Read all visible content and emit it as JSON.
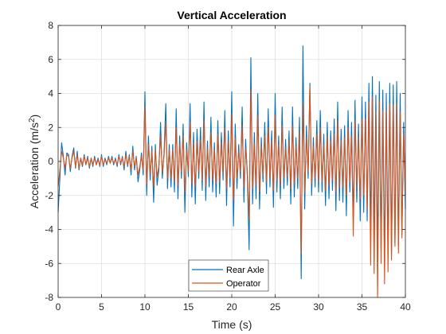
{
  "chart_data": {
    "type": "line",
    "title": "Vertical Acceleration",
    "xlabel": "Time (s)",
    "ylabel_main": "Acceleration (m/s",
    "ylabel_sup": "2",
    "ylabel_tail": ")",
    "xlim": [
      0,
      40
    ],
    "ylim": [
      -8,
      8
    ],
    "xticks": [
      0,
      5,
      10,
      15,
      20,
      25,
      30,
      35,
      40
    ],
    "yticks": [
      -8,
      -6,
      -4,
      -2,
      0,
      2,
      4,
      6,
      8
    ],
    "grid": true,
    "legend_position": "bottom-center",
    "series": [
      {
        "name": "Rear Axle",
        "color": "#0072BD",
        "x": [
          0,
          0.2,
          0.4,
          0.6,
          0.8,
          1.0,
          1.2,
          1.4,
          1.6,
          1.8,
          2.0,
          2.2,
          2.4,
          2.6,
          2.8,
          3.0,
          3.2,
          3.4,
          3.6,
          3.8,
          4.0,
          4.2,
          4.4,
          4.6,
          4.8,
          5.0,
          5.2,
          5.4,
          5.6,
          5.8,
          6.0,
          6.2,
          6.4,
          6.6,
          6.8,
          7.0,
          7.2,
          7.4,
          7.6,
          7.8,
          8.0,
          8.2,
          8.4,
          8.6,
          8.8,
          9.0,
          9.2,
          9.4,
          9.6,
          9.8,
          10.0,
          10.2,
          10.4,
          10.6,
          10.8,
          11.0,
          11.2,
          11.4,
          11.6,
          11.8,
          12.0,
          12.2,
          12.4,
          12.6,
          12.8,
          13.0,
          13.2,
          13.4,
          13.6,
          13.8,
          14.0,
          14.2,
          14.4,
          14.6,
          14.8,
          15.0,
          15.2,
          15.4,
          15.6,
          15.8,
          16.0,
          16.2,
          16.4,
          16.6,
          16.8,
          17.0,
          17.2,
          17.4,
          17.6,
          17.8,
          18.0,
          18.2,
          18.4,
          18.6,
          18.8,
          19.0,
          19.2,
          19.4,
          19.6,
          19.8,
          20.0,
          20.2,
          20.4,
          20.6,
          20.8,
          21.0,
          21.2,
          21.4,
          21.6,
          21.8,
          22.0,
          22.2,
          22.4,
          22.6,
          22.8,
          23.0,
          23.2,
          23.4,
          23.6,
          23.8,
          24.0,
          24.2,
          24.4,
          24.6,
          24.8,
          25.0,
          25.2,
          25.4,
          25.6,
          25.8,
          26.0,
          26.2,
          26.4,
          26.6,
          26.8,
          27.0,
          27.2,
          27.4,
          27.6,
          27.8,
          28.0,
          28.2,
          28.4,
          28.6,
          28.8,
          29.0,
          29.2,
          29.4,
          29.6,
          29.8,
          30.0,
          30.2,
          30.4,
          30.6,
          30.8,
          31.0,
          31.2,
          31.4,
          31.6,
          31.8,
          32.0,
          32.2,
          32.4,
          32.6,
          32.8,
          33.0,
          33.2,
          33.4,
          33.6,
          33.8,
          34.0,
          34.2,
          34.4,
          34.6,
          34.8,
          35.0,
          35.2,
          35.4,
          35.6,
          35.8,
          36.0,
          36.2,
          36.4,
          36.6,
          36.8,
          37.0,
          37.2,
          37.4,
          37.6,
          37.8,
          38.0,
          38.2,
          38.4,
          38.6,
          38.8,
          39.0,
          39.2,
          39.4,
          39.6,
          39.8,
          40.0
        ],
        "y": [
          -3.0,
          -1.0,
          1.1,
          0.3,
          -0.8,
          0.5,
          0.4,
          -0.6,
          0.3,
          0.8,
          -0.4,
          0.6,
          -0.5,
          0.2,
          -0.3,
          0.4,
          -0.2,
          0.3,
          -0.4,
          0.2,
          -0.3,
          0.3,
          -0.2,
          0.2,
          -0.3,
          0.4,
          -0.3,
          0.2,
          -0.2,
          0.3,
          -0.1,
          0.3,
          -0.2,
          0.2,
          -0.3,
          0.4,
          -0.2,
          0.3,
          -0.5,
          0.6,
          -0.3,
          0.4,
          -0.8,
          0.9,
          -0.5,
          0.3,
          -1.2,
          -0.5,
          0.5,
          -0.8,
          4.1,
          -2.0,
          1.5,
          -1.1,
          0.9,
          -2.4,
          1.0,
          -1.4,
          -0.5,
          2.3,
          -1.0,
          0.5,
          3.4,
          -1.6,
          1.0,
          -1.5,
          1.0,
          -1.8,
          3.1,
          -2.2,
          1.5,
          -1.0,
          2.2,
          -3.0,
          1.1,
          -0.9,
          3.4,
          -2.1,
          1.7,
          -2.5,
          1.9,
          -1.0,
          2.0,
          -1.7,
          3.5,
          -2.3,
          1.2,
          -1.5,
          2.6,
          -1.8,
          1.1,
          -2.1,
          2.4,
          -1.9,
          1.7,
          -1.1,
          3.0,
          -2.6,
          1.8,
          -1.5,
          4.1,
          -3.8,
          2.2,
          -1.6,
          1.0,
          -1.0,
          3.2,
          -2.4,
          1.3,
          -1.0,
          -5.2,
          6.1,
          -2.5,
          1.7,
          -2.2,
          4.0,
          -2.8,
          1.4,
          -1.2,
          2.3,
          -1.9,
          3.1,
          -1.5,
          1.8,
          -2.7,
          4.0,
          -1.8,
          1.5,
          -2.2,
          3.2,
          -1.6,
          1.3,
          -1.4,
          1.8,
          -2.5,
          3.2,
          -2.1,
          1.4,
          -1.6,
          2.6,
          -6.9,
          6.8,
          -2.8,
          2.1,
          -1.0,
          4.6,
          -2.0,
          1.4,
          -1.5,
          2.4,
          -1.8,
          3.0,
          -1.8,
          1.6,
          -2.6,
          2.3,
          -2.2,
          1.8,
          -1.7,
          2.5,
          -2.9,
          3.5,
          -2.3,
          1.9,
          -2.4,
          2.1,
          -3.2,
          3.0,
          -1.8,
          2.3,
          -3.6,
          3.6,
          -2.4,
          2.2,
          -3.5,
          3.8,
          -3.0,
          3.5,
          -3.5,
          4.6,
          -4.2,
          5.0,
          -4.6,
          3.9,
          -5.5,
          4.7,
          -5.2,
          4.2,
          -5.8,
          4.0,
          -5.3,
          4.6,
          -5.5,
          4.5,
          -4.8,
          4.7,
          -4.9,
          4.0,
          -4.3,
          2.3,
          -2.8
        ]
      },
      {
        "name": "Operator",
        "color": "#D95319",
        "x": [
          0,
          0.2,
          0.4,
          0.6,
          0.8,
          1.0,
          1.2,
          1.4,
          1.6,
          1.8,
          2.0,
          2.2,
          2.4,
          2.6,
          2.8,
          3.0,
          3.2,
          3.4,
          3.6,
          3.8,
          4.0,
          4.2,
          4.4,
          4.6,
          4.8,
          5.0,
          5.2,
          5.4,
          5.6,
          5.8,
          6.0,
          6.2,
          6.4,
          6.6,
          6.8,
          7.0,
          7.2,
          7.4,
          7.6,
          7.8,
          8.0,
          8.2,
          8.4,
          8.6,
          8.8,
          9.0,
          9.2,
          9.4,
          9.6,
          9.8,
          10.0,
          10.2,
          10.4,
          10.6,
          10.8,
          11.0,
          11.2,
          11.4,
          11.6,
          11.8,
          12.0,
          12.2,
          12.4,
          12.6,
          12.8,
          13.0,
          13.2,
          13.4,
          13.6,
          13.8,
          14.0,
          14.2,
          14.4,
          14.6,
          14.8,
          15.0,
          15.2,
          15.4,
          15.6,
          15.8,
          16.0,
          16.2,
          16.4,
          16.6,
          16.8,
          17.0,
          17.2,
          17.4,
          17.6,
          17.8,
          18.0,
          18.2,
          18.4,
          18.6,
          18.8,
          19.0,
          19.2,
          19.4,
          19.6,
          19.8,
          20.0,
          20.2,
          20.4,
          20.6,
          20.8,
          21.0,
          21.2,
          21.4,
          21.6,
          21.8,
          22.0,
          22.2,
          22.4,
          22.6,
          22.8,
          23.0,
          23.2,
          23.4,
          23.6,
          23.8,
          24.0,
          24.2,
          24.4,
          24.6,
          24.8,
          25.0,
          25.2,
          25.4,
          25.6,
          25.8,
          26.0,
          26.2,
          26.4,
          26.6,
          26.8,
          27.0,
          27.2,
          27.4,
          27.6,
          27.8,
          28.0,
          28.2,
          28.4,
          28.6,
          28.8,
          29.0,
          29.2,
          29.4,
          29.6,
          29.8,
          30.0,
          30.2,
          30.4,
          30.6,
          30.8,
          31.0,
          31.2,
          31.4,
          31.6,
          31.8,
          32.0,
          32.2,
          32.4,
          32.6,
          32.8,
          33.0,
          33.2,
          33.4,
          33.6,
          33.8,
          34.0,
          34.2,
          34.4,
          34.6,
          34.8,
          35.0,
          35.2,
          35.4,
          35.6,
          35.8,
          36.0,
          36.2,
          36.4,
          36.6,
          36.8,
          37.0,
          37.2,
          37.4,
          37.6,
          37.8,
          38.0,
          38.2,
          38.4,
          38.6,
          38.8,
          39.0,
          39.2,
          39.4,
          39.6,
          39.8,
          40.0
        ],
        "y": [
          -1.5,
          -0.5,
          0.6,
          0.2,
          -0.4,
          0.4,
          0.3,
          -0.4,
          0.2,
          0.6,
          -0.3,
          0.4,
          -0.4,
          0.2,
          -0.2,
          0.3,
          -0.2,
          0.2,
          -0.3,
          0.2,
          -0.2,
          0.2,
          -0.2,
          0.1,
          -0.2,
          0.3,
          -0.2,
          0.1,
          -0.1,
          0.2,
          -0.1,
          0.2,
          -0.1,
          0.1,
          -0.2,
          0.3,
          -0.1,
          0.2,
          -0.3,
          0.4,
          -0.2,
          0.3,
          -0.5,
          0.6,
          -0.3,
          0.2,
          -0.8,
          -0.3,
          0.3,
          -0.5,
          3.2,
          -1.3,
          1.0,
          -0.7,
          0.6,
          -1.5,
          0.7,
          -0.9,
          -0.3,
          1.5,
          -0.6,
          0.3,
          2.3,
          -1.0,
          0.7,
          -1.0,
          0.7,
          -1.2,
          2.0,
          -1.4,
          1.0,
          -0.6,
          1.5,
          -1.8,
          0.7,
          -0.6,
          2.3,
          -1.3,
          1.1,
          -1.5,
          1.2,
          -0.6,
          1.3,
          -1.1,
          2.4,
          -1.5,
          0.8,
          -0.9,
          1.7,
          -1.1,
          0.7,
          -1.3,
          1.6,
          -1.2,
          1.1,
          -0.7,
          2.0,
          -1.6,
          1.2,
          -1.0,
          2.8,
          -2.3,
          1.4,
          -1.0,
          0.6,
          -0.6,
          2.1,
          -1.5,
          0.8,
          -0.6,
          -3.4,
          4.2,
          -1.6,
          1.1,
          -1.4,
          2.7,
          -1.8,
          0.9,
          -0.8,
          1.5,
          -1.2,
          2.0,
          -1.0,
          1.2,
          -1.7,
          2.7,
          -1.1,
          1.0,
          -1.4,
          2.1,
          -1.0,
          0.8,
          -0.9,
          1.2,
          -1.6,
          2.1,
          -1.3,
          0.9,
          -1.0,
          1.7,
          -5.4,
          3.4,
          -1.8,
          1.4,
          -0.6,
          4.4,
          -1.3,
          0.9,
          -1.0,
          1.6,
          -1.2,
          2.0,
          -1.2,
          1.0,
          -1.7,
          1.5,
          -1.4,
          1.2,
          -1.1,
          1.6,
          -1.8,
          2.4,
          -1.5,
          1.2,
          -1.5,
          1.4,
          -2.0,
          2.0,
          -1.2,
          1.5,
          -4.4,
          2.4,
          -1.5,
          1.4,
          -2.2,
          2.5,
          -2.0,
          2.5,
          -2.8,
          3.5,
          -6.1,
          3.8,
          -6.6,
          2.9,
          -8.0,
          3.6,
          -6.0,
          3.0,
          -7.2,
          3.0,
          -6.5,
          3.4,
          -5.8,
          3.3,
          -5.0,
          3.4,
          -5.4,
          2.9,
          -4.5,
          1.6,
          -2.0
        ]
      }
    ]
  }
}
